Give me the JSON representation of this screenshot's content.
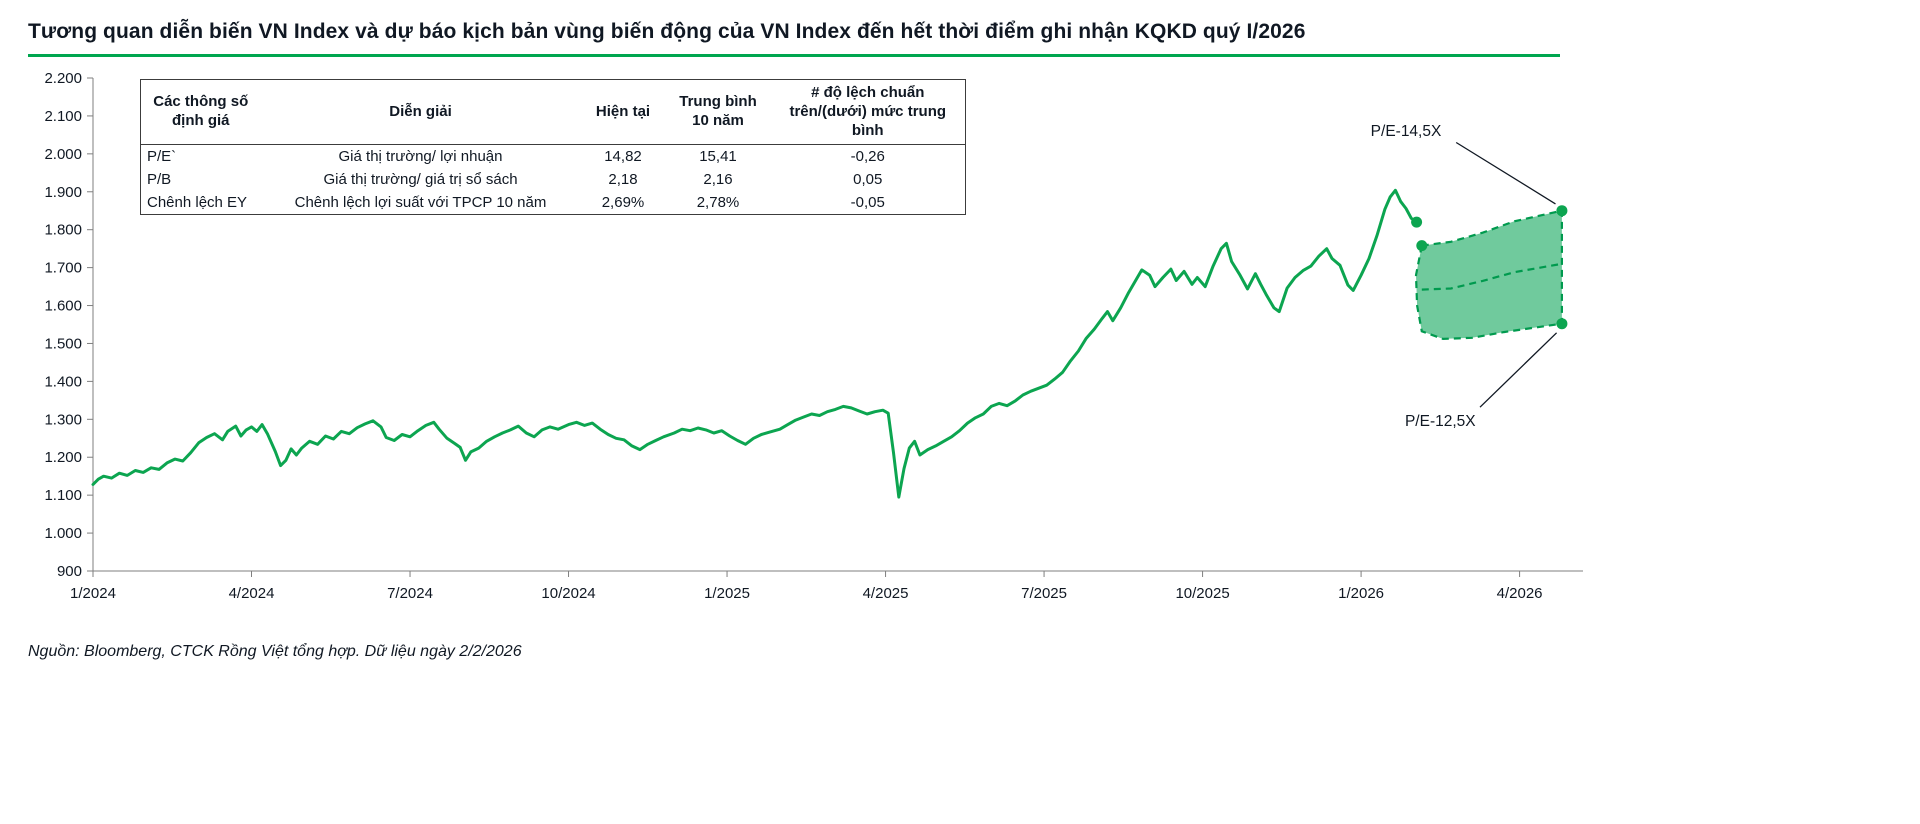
{
  "title": "Tương quan diễn biến VN Index và dự báo kịch bản vùng biến động của VN Index đến hết thời điểm ghi nhận KQKD quý I/2026",
  "source": "Nguồn: Bloomberg, CTCK Rồng Việt tổng hợp. Dữ liệu ngày 2/2/2026",
  "table": {
    "headers": [
      "Các thông số định giá",
      "Diễn giải",
      "Hiện tại",
      "Trung bình 10 năm",
      "# độ lệch chuẩn trên/(dưới) mức trung bình"
    ],
    "rows": [
      [
        "P/E`",
        "Giá thị trường/ lợi nhuận",
        "14,82",
        "15,41",
        "-0,26"
      ],
      [
        "P/B",
        "Giá thị trường/ giá trị sổ sách",
        "2,18",
        "2,16",
        "0,05"
      ],
      [
        "Chênh lệch EY",
        "Chênh lệch lợi suất với TPCP 10 năm",
        "2,69%",
        "2,78%",
        "-0,05"
      ]
    ]
  },
  "chart_data": {
    "type": "line",
    "title": "Tương quan diễn biến VN Index và dự báo kịch bản vùng biến động của VN Index đến hết thời điểm ghi nhận KQKD quý I/2026",
    "xlabel": "",
    "ylabel": "",
    "grid": false,
    "legend": "none",
    "x_domain": [
      0,
      28.2
    ],
    "ylim": [
      900,
      2200
    ],
    "colors": {
      "line": "#0ca550",
      "band_fill": "#57c18c",
      "band_stroke": "#009a4e",
      "axis": "#7f7f7f",
      "text": "#101823",
      "accent_rule": "#00a64f"
    },
    "y_ticks": [
      {
        "v": 900,
        "label": "900"
      },
      {
        "v": 1000,
        "label": "1.000"
      },
      {
        "v": 1100,
        "label": "1.100"
      },
      {
        "v": 1200,
        "label": "1.200"
      },
      {
        "v": 1300,
        "label": "1.300"
      },
      {
        "v": 1400,
        "label": "1.400"
      },
      {
        "v": 1500,
        "label": "1.500"
      },
      {
        "v": 1600,
        "label": "1.600"
      },
      {
        "v": 1700,
        "label": "1.700"
      },
      {
        "v": 1800,
        "label": "1.800"
      },
      {
        "v": 1900,
        "label": "1.900"
      },
      {
        "v": 2000,
        "label": "2.000"
      },
      {
        "v": 2100,
        "label": "2.100"
      },
      {
        "v": 2200,
        "label": "2.200"
      }
    ],
    "x_ticks": [
      {
        "v": 0,
        "label": "1/2024"
      },
      {
        "v": 3,
        "label": "4/2024"
      },
      {
        "v": 6,
        "label": "7/2024"
      },
      {
        "v": 9,
        "label": "10/2024"
      },
      {
        "v": 12,
        "label": "1/2025"
      },
      {
        "v": 15,
        "label": "4/2025"
      },
      {
        "v": 18,
        "label": "7/2025"
      },
      {
        "v": 21,
        "label": "10/2025"
      },
      {
        "v": 24,
        "label": "1/2026"
      },
      {
        "v": 27,
        "label": "4/2026"
      }
    ],
    "series": [
      {
        "name": "VN Index",
        "color": "#0ca550",
        "values": [
          [
            0,
            1128
          ],
          [
            0.1,
            1142
          ],
          [
            0.2,
            1150
          ],
          [
            0.35,
            1145
          ],
          [
            0.5,
            1158
          ],
          [
            0.65,
            1152
          ],
          [
            0.8,
            1165
          ],
          [
            0.95,
            1160
          ],
          [
            1.1,
            1172
          ],
          [
            1.25,
            1168
          ],
          [
            1.4,
            1185
          ],
          [
            1.55,
            1195
          ],
          [
            1.7,
            1190
          ],
          [
            1.85,
            1212
          ],
          [
            2,
            1238
          ],
          [
            2.15,
            1252
          ],
          [
            2.3,
            1262
          ],
          [
            2.45,
            1246
          ],
          [
            2.55,
            1268
          ],
          [
            2.7,
            1282
          ],
          [
            2.8,
            1256
          ],
          [
            2.9,
            1272
          ],
          [
            3,
            1280
          ],
          [
            3.1,
            1268
          ],
          [
            3.2,
            1286
          ],
          [
            3.3,
            1262
          ],
          [
            3.45,
            1215
          ],
          [
            3.55,
            1178
          ],
          [
            3.65,
            1192
          ],
          [
            3.75,
            1222
          ],
          [
            3.85,
            1206
          ],
          [
            3.95,
            1224
          ],
          [
            4.1,
            1242
          ],
          [
            4.25,
            1234
          ],
          [
            4.4,
            1256
          ],
          [
            4.55,
            1248
          ],
          [
            4.7,
            1268
          ],
          [
            4.85,
            1262
          ],
          [
            5,
            1278
          ],
          [
            5.15,
            1288
          ],
          [
            5.3,
            1296
          ],
          [
            5.45,
            1280
          ],
          [
            5.55,
            1252
          ],
          [
            5.7,
            1244
          ],
          [
            5.85,
            1260
          ],
          [
            6,
            1254
          ],
          [
            6.15,
            1270
          ],
          [
            6.3,
            1284
          ],
          [
            6.45,
            1292
          ],
          [
            6.55,
            1274
          ],
          [
            6.7,
            1250
          ],
          [
            6.85,
            1236
          ],
          [
            6.95,
            1226
          ],
          [
            7.05,
            1192
          ],
          [
            7.15,
            1214
          ],
          [
            7.3,
            1224
          ],
          [
            7.45,
            1242
          ],
          [
            7.6,
            1254
          ],
          [
            7.75,
            1264
          ],
          [
            7.9,
            1272
          ],
          [
            8.05,
            1282
          ],
          [
            8.2,
            1264
          ],
          [
            8.35,
            1254
          ],
          [
            8.5,
            1272
          ],
          [
            8.65,
            1280
          ],
          [
            8.8,
            1274
          ],
          [
            9,
            1286
          ],
          [
            9.15,
            1292
          ],
          [
            9.3,
            1284
          ],
          [
            9.45,
            1290
          ],
          [
            9.6,
            1274
          ],
          [
            9.75,
            1260
          ],
          [
            9.9,
            1250
          ],
          [
            10.05,
            1246
          ],
          [
            10.2,
            1230
          ],
          [
            10.35,
            1220
          ],
          [
            10.5,
            1234
          ],
          [
            10.65,
            1244
          ],
          [
            10.8,
            1254
          ],
          [
            11,
            1264
          ],
          [
            11.15,
            1274
          ],
          [
            11.3,
            1270
          ],
          [
            11.45,
            1277
          ],
          [
            11.6,
            1272
          ],
          [
            11.75,
            1264
          ],
          [
            11.9,
            1270
          ],
          [
            12.05,
            1256
          ],
          [
            12.2,
            1244
          ],
          [
            12.35,
            1234
          ],
          [
            12.5,
            1250
          ],
          [
            12.65,
            1260
          ],
          [
            12.8,
            1266
          ],
          [
            13,
            1274
          ],
          [
            13.15,
            1286
          ],
          [
            13.3,
            1298
          ],
          [
            13.45,
            1306
          ],
          [
            13.6,
            1314
          ],
          [
            13.75,
            1310
          ],
          [
            13.9,
            1320
          ],
          [
            14.05,
            1326
          ],
          [
            14.2,
            1334
          ],
          [
            14.35,
            1330
          ],
          [
            14.5,
            1322
          ],
          [
            14.65,
            1314
          ],
          [
            14.8,
            1320
          ],
          [
            14.95,
            1324
          ],
          [
            15.05,
            1316
          ],
          [
            15.15,
            1212
          ],
          [
            15.25,
            1095
          ],
          [
            15.35,
            1170
          ],
          [
            15.45,
            1224
          ],
          [
            15.55,
            1242
          ],
          [
            15.65,
            1206
          ],
          [
            15.8,
            1220
          ],
          [
            15.95,
            1230
          ],
          [
            16.1,
            1242
          ],
          [
            16.25,
            1254
          ],
          [
            16.4,
            1270
          ],
          [
            16.55,
            1290
          ],
          [
            16.7,
            1304
          ],
          [
            16.85,
            1314
          ],
          [
            17,
            1334
          ],
          [
            17.15,
            1342
          ],
          [
            17.3,
            1336
          ],
          [
            17.45,
            1348
          ],
          [
            17.6,
            1364
          ],
          [
            17.75,
            1374
          ],
          [
            17.9,
            1382
          ],
          [
            18.05,
            1390
          ],
          [
            18.2,
            1406
          ],
          [
            18.35,
            1424
          ],
          [
            18.5,
            1454
          ],
          [
            18.65,
            1480
          ],
          [
            18.8,
            1514
          ],
          [
            18.95,
            1538
          ],
          [
            19.1,
            1566
          ],
          [
            19.2,
            1584
          ],
          [
            19.3,
            1560
          ],
          [
            19.45,
            1594
          ],
          [
            19.6,
            1634
          ],
          [
            19.75,
            1670
          ],
          [
            19.85,
            1694
          ],
          [
            20,
            1680
          ],
          [
            20.1,
            1650
          ],
          [
            20.25,
            1674
          ],
          [
            20.4,
            1696
          ],
          [
            20.5,
            1666
          ],
          [
            20.65,
            1690
          ],
          [
            20.8,
            1656
          ],
          [
            20.9,
            1674
          ],
          [
            21.05,
            1650
          ],
          [
            21.2,
            1704
          ],
          [
            21.35,
            1750
          ],
          [
            21.45,
            1764
          ],
          [
            21.55,
            1716
          ],
          [
            21.7,
            1682
          ],
          [
            21.85,
            1644
          ],
          [
            22,
            1684
          ],
          [
            22.1,
            1656
          ],
          [
            22.2,
            1630
          ],
          [
            22.35,
            1594
          ],
          [
            22.45,
            1584
          ],
          [
            22.6,
            1646
          ],
          [
            22.75,
            1674
          ],
          [
            22.9,
            1692
          ],
          [
            23.05,
            1704
          ],
          [
            23.2,
            1730
          ],
          [
            23.35,
            1750
          ],
          [
            23.45,
            1724
          ],
          [
            23.6,
            1706
          ],
          [
            23.75,
            1654
          ],
          [
            23.85,
            1640
          ],
          [
            24,
            1680
          ],
          [
            24.15,
            1724
          ],
          [
            24.3,
            1784
          ],
          [
            24.45,
            1854
          ],
          [
            24.55,
            1886
          ],
          [
            24.65,
            1904
          ],
          [
            24.75,
            1874
          ],
          [
            24.85,
            1856
          ],
          [
            24.95,
            1830
          ],
          [
            25.05,
            1820
          ]
        ]
      }
    ],
    "forecast_band": {
      "upper_label": "P/E-14,5X",
      "lower_label": "P/E-12,5X",
      "upper": [
        [
          25.15,
          1758
        ],
        [
          25.7,
          1768
        ],
        [
          26.3,
          1792
        ],
        [
          26.9,
          1822
        ],
        [
          27.8,
          1850
        ]
      ],
      "lower": [
        [
          25.15,
          1532
        ],
        [
          25.55,
          1512
        ],
        [
          26.1,
          1515
        ],
        [
          26.7,
          1530
        ],
        [
          27.8,
          1552
        ]
      ],
      "left_edge": [
        [
          25.06,
          1600
        ],
        [
          25.04,
          1680
        ]
      ],
      "mid": [
        [
          25.15,
          1642
        ],
        [
          25.7,
          1645
        ],
        [
          26.3,
          1665
        ],
        [
          26.9,
          1688
        ],
        [
          27.8,
          1710
        ]
      ]
    },
    "markers": [
      [
        25.05,
        1820
      ],
      [
        25.15,
        1758
      ],
      [
        27.8,
        1850
      ],
      [
        27.8,
        1552
      ]
    ],
    "annotations": [
      {
        "label": "P/E-14,5X",
        "label_x": 24.85,
        "label_y": 2060,
        "line": [
          [
            25.8,
            2030
          ],
          [
            27.68,
            1868
          ]
        ]
      },
      {
        "label": "P/E-12,5X",
        "label_x": 25.5,
        "label_y": 1295,
        "line": [
          [
            26.25,
            1332
          ],
          [
            27.7,
            1528
          ]
        ]
      }
    ]
  }
}
